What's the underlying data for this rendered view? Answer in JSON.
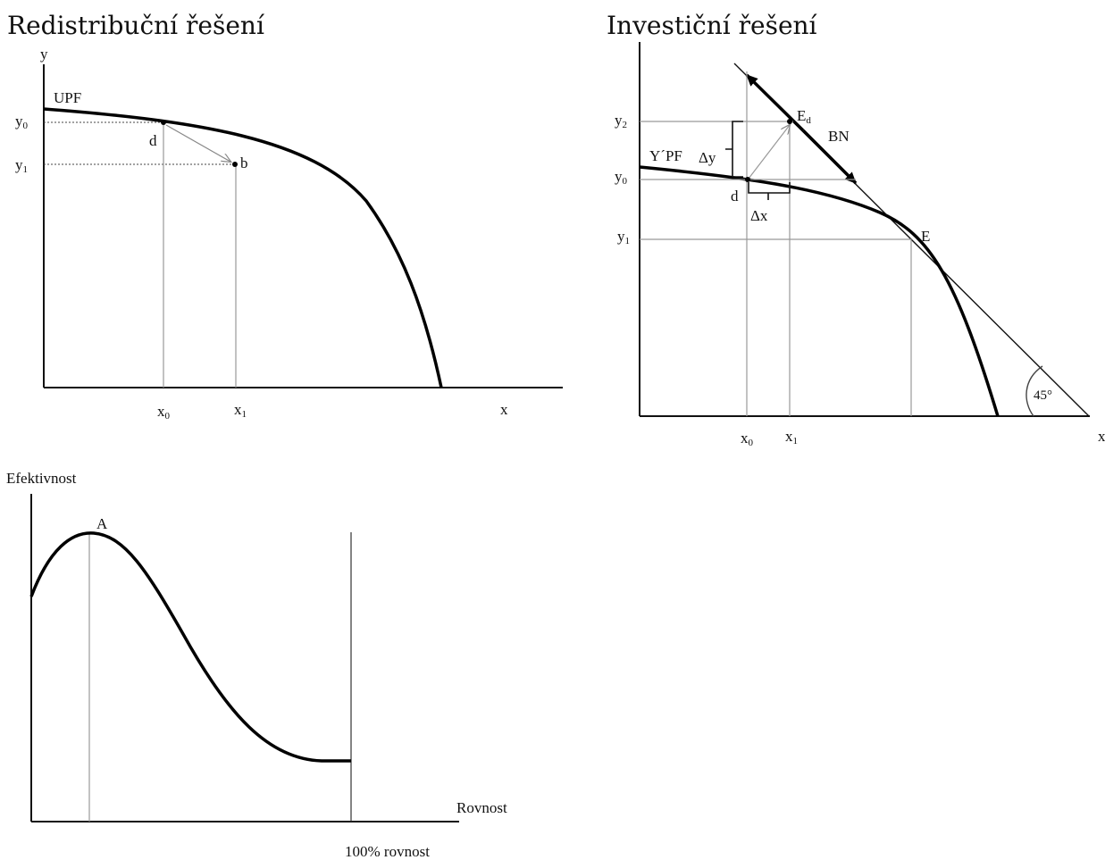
{
  "panels": {
    "redistribution": {
      "title": "Redistribuční řešení",
      "y_axis": "y",
      "x_axis": "x",
      "curve_label": "UPF",
      "y0_label": "y",
      "y0_sub": "0",
      "y1_label": "y",
      "y1_sub": "1",
      "x0_label": "x",
      "x0_sub": "0",
      "x1_label": "x",
      "x1_sub": "1",
      "point_d": "d",
      "point_b": "b"
    },
    "investment": {
      "title": "Investiční řešení",
      "x_axis": "x",
      "curve_label": "Y´PF",
      "y2_label": "y",
      "y2_sub": "2",
      "y0_label": "y",
      "y0_sub": "0",
      "y1_label": "y",
      "y1_sub": "1",
      "x0_label": "x",
      "x0_sub": "0",
      "x1_label": "x",
      "x1_sub": "1",
      "point_Ed": "E",
      "point_Ed_sub": "d",
      "point_E": "E",
      "point_d": "d",
      "line_label": "BN",
      "delta_y": "Δy",
      "delta_x": "Δx",
      "angle": "45°"
    },
    "efficiency": {
      "y_axis": "Efektivnost",
      "x_axis": "Rovnost",
      "peak_label": "A",
      "bound_label": "100% rovnost"
    }
  }
}
